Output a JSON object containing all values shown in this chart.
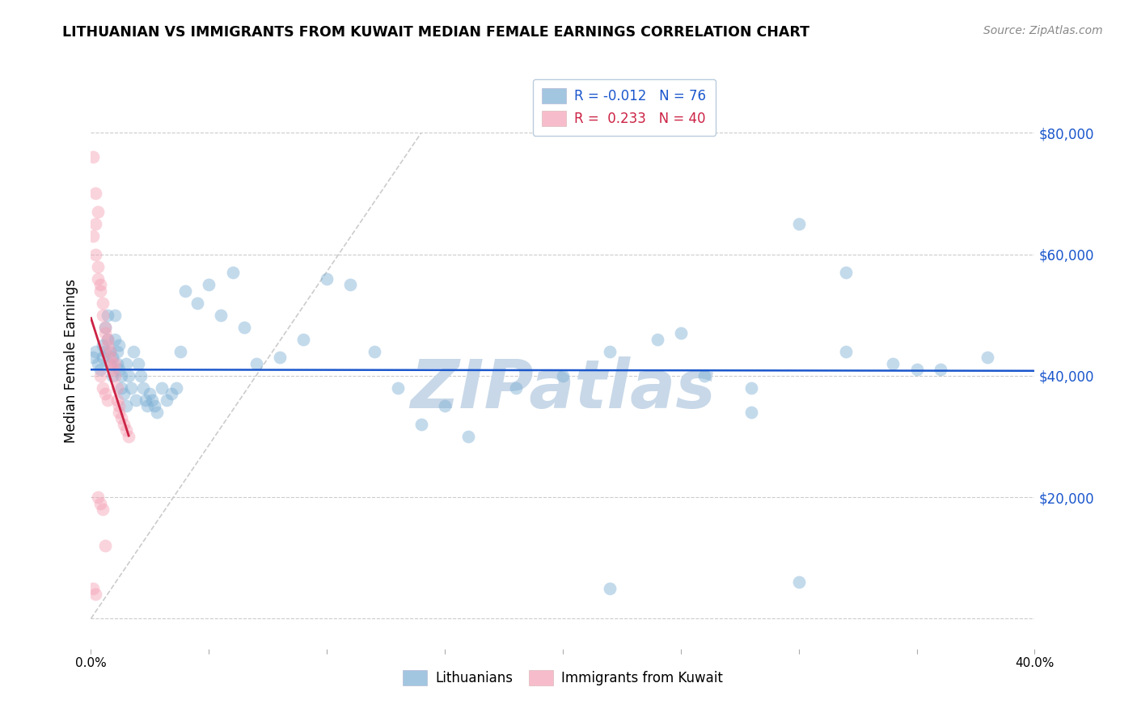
{
  "title": "LITHUANIAN VS IMMIGRANTS FROM KUWAIT MEDIAN FEMALE EARNINGS CORRELATION CHART",
  "source": "Source: ZipAtlas.com",
  "ylabel": "Median Female Earnings",
  "xlim": [
    0.0,
    0.4
  ],
  "ylim": [
    -5000,
    90000
  ],
  "blue_R": -0.012,
  "blue_N": 76,
  "pink_R": 0.233,
  "pink_N": 40,
  "blue_color": "#7BAFD4",
  "pink_color": "#F4A0B5",
  "blue_line_color": "#1A56CC",
  "pink_line_color": "#CC2244",
  "diagonal_color": "#CCCCCC",
  "watermark": "ZIPatlas",
  "watermark_color": "#C8D8E8",
  "legend_blue_label": "Lithuanians",
  "legend_pink_label": "Immigrants from Kuwait",
  "blue_scatter_x": [
    0.001,
    0.002,
    0.003,
    0.004,
    0.005,
    0.005,
    0.006,
    0.006,
    0.007,
    0.007,
    0.008,
    0.008,
    0.009,
    0.009,
    0.01,
    0.01,
    0.011,
    0.011,
    0.012,
    0.012,
    0.013,
    0.013,
    0.014,
    0.015,
    0.015,
    0.016,
    0.017,
    0.018,
    0.019,
    0.02,
    0.021,
    0.022,
    0.023,
    0.024,
    0.025,
    0.026,
    0.027,
    0.028,
    0.03,
    0.032,
    0.034,
    0.036,
    0.038,
    0.04,
    0.045,
    0.05,
    0.055,
    0.06,
    0.065,
    0.07,
    0.08,
    0.09,
    0.1,
    0.11,
    0.12,
    0.13,
    0.14,
    0.16,
    0.18,
    0.2,
    0.22,
    0.24,
    0.26,
    0.28,
    0.3,
    0.32,
    0.34,
    0.36,
    0.38,
    0.22,
    0.3,
    0.35,
    0.25,
    0.15,
    0.28,
    0.32
  ],
  "blue_scatter_y": [
    43000,
    44000,
    42000,
    41000,
    45000,
    43000,
    48000,
    44000,
    50000,
    46000,
    44000,
    42000,
    43000,
    40000,
    50000,
    46000,
    44000,
    42000,
    45000,
    41000,
    40000,
    38000,
    37000,
    42000,
    35000,
    40000,
    38000,
    44000,
    36000,
    42000,
    40000,
    38000,
    36000,
    35000,
    37000,
    36000,
    35000,
    34000,
    38000,
    36000,
    37000,
    38000,
    44000,
    54000,
    52000,
    55000,
    50000,
    57000,
    48000,
    42000,
    43000,
    46000,
    56000,
    55000,
    44000,
    38000,
    32000,
    30000,
    38000,
    40000,
    44000,
    46000,
    40000,
    38000,
    65000,
    57000,
    42000,
    41000,
    43000,
    5000,
    6000,
    41000,
    47000,
    35000,
    34000,
    44000
  ],
  "pink_scatter_x": [
    0.001,
    0.001,
    0.002,
    0.002,
    0.003,
    0.003,
    0.004,
    0.004,
    0.005,
    0.005,
    0.006,
    0.006,
    0.007,
    0.007,
    0.008,
    0.008,
    0.009,
    0.009,
    0.01,
    0.01,
    0.011,
    0.011,
    0.012,
    0.012,
    0.013,
    0.014,
    0.015,
    0.016,
    0.002,
    0.003,
    0.004,
    0.005,
    0.006,
    0.007,
    0.003,
    0.004,
    0.005,
    0.006,
    0.001,
    0.002
  ],
  "pink_scatter_y": [
    76000,
    63000,
    65000,
    60000,
    58000,
    56000,
    55000,
    54000,
    52000,
    50000,
    48000,
    47000,
    46000,
    45000,
    44000,
    43000,
    42000,
    41000,
    42000,
    40000,
    38000,
    36000,
    35000,
    34000,
    33000,
    32000,
    31000,
    30000,
    70000,
    67000,
    40000,
    38000,
    37000,
    36000,
    20000,
    19000,
    18000,
    12000,
    5000,
    4000
  ],
  "marker_size": 130,
  "marker_alpha": 0.45
}
